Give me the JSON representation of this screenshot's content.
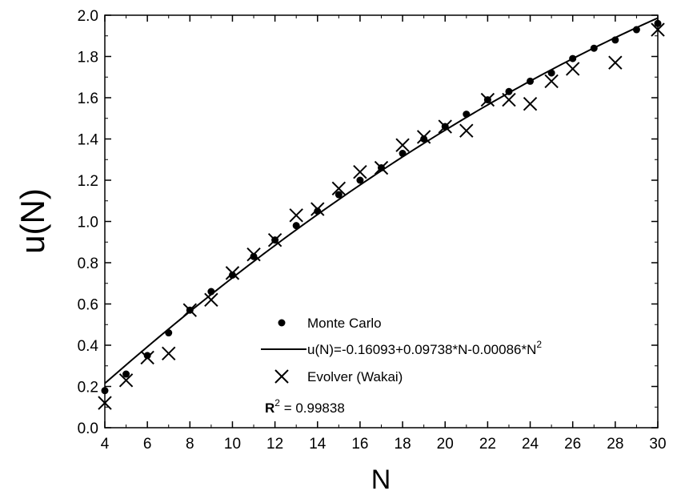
{
  "chart_data": {
    "type": "scatter",
    "title": "",
    "xlabel": "N",
    "ylabel": "u(N)",
    "xlim": [
      4,
      30
    ],
    "ylim": [
      0.0,
      2.0
    ],
    "xticks": [
      "4",
      "6",
      "8",
      "10",
      "12",
      "14",
      "16",
      "18",
      "20",
      "22",
      "24",
      "26",
      "28",
      "30"
    ],
    "yticks": [
      "0.0",
      "0.2",
      "0.4",
      "0.6",
      "0.8",
      "1.0",
      "1.2",
      "1.4",
      "1.6",
      "1.8",
      "2.0"
    ],
    "series": [
      {
        "name": "Monte Carlo",
        "marker": "dot",
        "x": [
          4,
          5,
          6,
          7,
          8,
          9,
          10,
          11,
          12,
          13,
          14,
          15,
          16,
          17,
          18,
          19,
          20,
          21,
          22,
          23,
          24,
          25,
          26,
          27,
          28,
          29,
          30
        ],
        "y": [
          0.18,
          0.26,
          0.35,
          0.46,
          0.57,
          0.66,
          0.74,
          0.83,
          0.91,
          0.98,
          1.05,
          1.13,
          1.2,
          1.26,
          1.33,
          1.4,
          1.46,
          1.52,
          1.59,
          1.63,
          1.68,
          1.72,
          1.79,
          1.84,
          1.88,
          1.93,
          1.96
        ]
      },
      {
        "name": "Evolver (Wakai)",
        "marker": "x",
        "x": [
          4,
          5,
          6,
          7,
          8,
          9,
          10,
          11,
          12,
          13,
          14,
          15,
          16,
          17,
          18,
          19,
          20,
          21,
          22,
          23,
          24,
          25,
          26,
          28,
          30
        ],
        "y": [
          0.12,
          0.23,
          0.34,
          0.36,
          0.57,
          0.62,
          0.75,
          0.84,
          0.91,
          1.03,
          1.06,
          1.16,
          1.24,
          1.26,
          1.37,
          1.41,
          1.46,
          1.44,
          1.59,
          1.59,
          1.57,
          1.68,
          1.74,
          1.77,
          1.93
        ]
      }
    ],
    "fit": {
      "name_prefix": "u(N)=-0.16093+0.09738*N-0.00086*N",
      "name_sup": "2",
      "coefficients": [
        -0.16093,
        0.09738,
        -0.00086
      ]
    },
    "r2": {
      "label": "R",
      "sup": "2",
      "text": " = 0.99838"
    },
    "grid": false,
    "legend_position": "bottom-right"
  }
}
